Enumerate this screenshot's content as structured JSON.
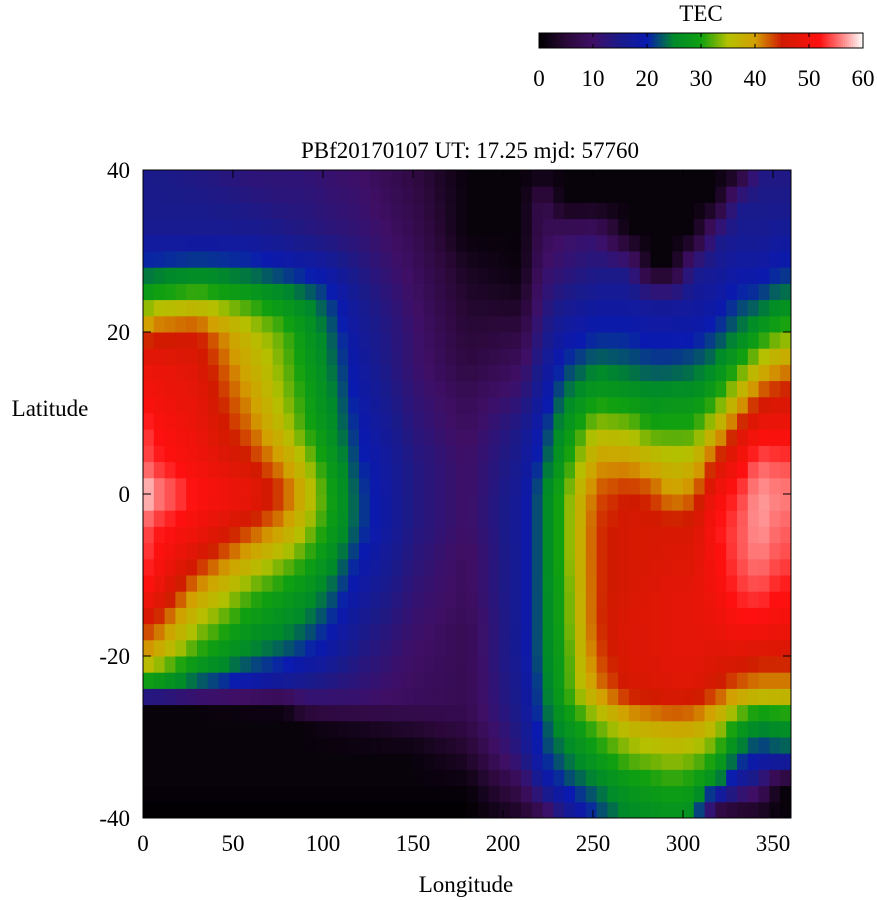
{
  "chart_data": {
    "type": "heatmap",
    "title": "PBf20170107  UT: 17.25  mjd: 57760",
    "xlabel": "Longitude",
    "ylabel": "Latitude",
    "xlim": [
      0,
      360
    ],
    "ylim": [
      -40,
      40
    ],
    "x_ticks": [
      "0",
      "50",
      "100",
      "150",
      "200",
      "250",
      "300",
      "350"
    ],
    "y_ticks": [
      "40",
      "20",
      "0",
      "-20",
      "-40"
    ],
    "grid": false,
    "colorbar": {
      "title": "TEC",
      "ticks": [
        "0",
        "10",
        "20",
        "30",
        "40",
        "50",
        "60"
      ],
      "range": [
        0,
        60
      ],
      "placement": "top-right",
      "colormap": [
        [
          0,
          "#000000"
        ],
        [
          5,
          "#2a0838"
        ],
        [
          10,
          "#3f0f66"
        ],
        [
          15,
          "#1a1a8a"
        ],
        [
          20,
          "#0a1ab0"
        ],
        [
          25,
          "#008a2a"
        ],
        [
          30,
          "#10a010"
        ],
        [
          35,
          "#b4c000"
        ],
        [
          40,
          "#d2a000"
        ],
        [
          45,
          "#d01a00"
        ],
        [
          52,
          "#ff1010"
        ],
        [
          56,
          "#ff8080"
        ],
        [
          60,
          "#ffffff"
        ]
      ]
    },
    "longitude_step": 6,
    "latitude_step": 2,
    "profile_longitudes": [
      0,
      6,
      30,
      60,
      78,
      90,
      102,
      120,
      150,
      180,
      210,
      222,
      234,
      252,
      270,
      282,
      294,
      306,
      318,
      330,
      342,
      354,
      360
    ],
    "profile_latitudes": [
      -40,
      -36,
      -32,
      -28,
      -26,
      -24,
      -20,
      -16,
      -12,
      -8,
      -4,
      0,
      4,
      8,
      12,
      16,
      20,
      24,
      28,
      32,
      36,
      40
    ],
    "tec_profiles": [
      [
        0,
        1,
        1,
        1,
        1,
        26,
        40,
        45,
        52,
        54,
        55,
        60,
        55,
        54,
        51,
        49,
        42,
        30,
        22,
        16,
        15,
        15
      ],
      [
        0,
        1,
        1,
        1,
        1,
        26,
        38,
        44,
        50,
        52,
        53,
        57,
        53,
        52,
        50,
        49,
        44,
        32,
        22,
        16,
        15,
        15
      ],
      [
        0,
        1,
        1,
        1,
        1,
        21,
        30,
        35,
        40,
        46,
        50,
        52,
        50,
        49,
        48,
        47,
        45,
        34,
        23,
        16,
        15,
        14
      ],
      [
        0,
        1,
        1,
        1,
        2,
        17,
        24,
        28,
        32,
        38,
        44,
        49,
        45,
        42,
        40,
        38,
        36,
        30,
        22,
        16,
        14,
        12
      ],
      [
        0,
        1,
        1,
        1,
        2,
        15,
        22,
        26,
        29,
        34,
        40,
        44,
        40,
        36,
        34,
        33,
        32,
        27,
        20,
        15,
        13,
        12
      ],
      [
        0,
        1,
        1,
        1,
        9,
        14,
        20,
        24,
        27,
        31,
        35,
        38,
        35,
        31,
        30,
        29,
        28,
        25,
        19,
        14,
        13,
        12
      ],
      [
        0,
        1,
        1,
        2,
        10,
        13,
        18,
        21,
        24,
        27,
        30,
        31,
        29,
        27,
        26,
        25,
        24,
        22,
        18,
        13,
        12,
        11
      ],
      [
        0,
        1,
        1,
        3,
        10,
        12,
        14,
        16,
        18,
        20,
        22,
        22,
        21,
        20,
        19,
        18,
        17,
        16,
        14,
        12,
        11,
        10
      ],
      [
        0,
        1,
        1,
        5,
        9,
        9,
        10,
        11,
        12,
        13,
        14,
        14,
        14,
        13,
        12,
        11,
        11,
        10,
        9,
        8,
        7,
        6
      ],
      [
        0,
        1,
        4,
        7,
        8,
        8,
        8,
        8,
        9,
        9,
        10,
        10,
        10,
        9,
        8,
        6,
        5,
        4,
        3,
        1,
        1,
        1
      ],
      [
        3,
        8,
        14,
        15,
        16,
        16,
        17,
        17,
        17,
        17,
        17,
        17,
        16,
        15,
        12,
        9,
        6,
        3,
        1,
        1,
        1,
        1
      ],
      [
        6,
        17,
        21,
        22,
        23,
        23,
        24,
        24,
        24,
        24,
        24,
        24,
        22,
        20,
        18,
        16,
        14,
        12,
        10,
        8,
        8,
        1
      ],
      [
        14,
        21,
        24,
        27,
        29,
        30,
        30,
        31,
        31,
        32,
        32,
        32,
        29,
        27,
        24,
        21,
        18,
        15,
        12,
        10,
        1,
        1
      ],
      [
        21,
        24,
        29,
        33,
        37,
        41,
        43,
        44,
        44,
        44,
        44,
        43,
        40,
        35,
        29,
        24,
        20,
        17,
        14,
        11,
        1,
        1
      ],
      [
        25,
        28,
        33,
        38,
        43,
        46,
        47,
        47,
        46,
        46,
        46,
        45,
        40,
        34,
        28,
        23,
        20,
        17,
        14,
        1,
        1,
        1
      ],
      [
        26,
        29,
        34,
        39,
        44,
        46,
        47,
        47,
        47,
        46,
        46,
        44,
        38,
        31,
        26,
        22,
        19,
        16,
        1,
        1,
        1,
        1
      ],
      [
        27,
        30,
        35,
        40,
        45,
        47,
        48,
        48,
        48,
        47,
        46,
        40,
        36,
        31,
        27,
        22,
        19,
        16,
        1,
        1,
        1,
        1
      ],
      [
        26,
        29,
        34,
        40,
        44,
        47,
        48,
        48,
        48,
        47,
        46,
        42,
        37,
        31,
        27,
        23,
        19,
        17,
        15,
        1,
        1,
        1
      ],
      [
        1,
        25,
        31,
        37,
        41,
        45,
        47,
        49,
        50,
        51,
        52,
        50,
        45,
        37,
        30,
        25,
        21,
        18,
        16,
        14,
        1,
        1
      ],
      [
        1,
        16,
        24,
        30,
        36,
        42,
        47,
        51,
        53,
        54,
        54,
        53,
        50,
        45,
        37,
        30,
        24,
        21,
        18,
        16,
        15,
        1
      ],
      [
        1,
        12,
        20,
        26,
        33,
        40,
        46,
        51,
        54,
        56,
        57,
        57,
        55,
        50,
        44,
        36,
        28,
        22,
        18,
        16,
        15,
        14
      ],
      [
        1,
        1,
        22,
        27,
        34,
        40,
        46,
        50,
        52,
        54,
        55,
        56,
        54,
        50,
        46,
        40,
        32,
        25,
        20,
        17,
        15,
        14
      ],
      [
        1,
        1,
        22,
        27,
        34,
        40,
        46,
        50,
        52,
        54,
        55,
        56,
        54,
        50,
        46,
        40,
        32,
        25,
        20,
        17,
        15,
        14
      ]
    ]
  }
}
